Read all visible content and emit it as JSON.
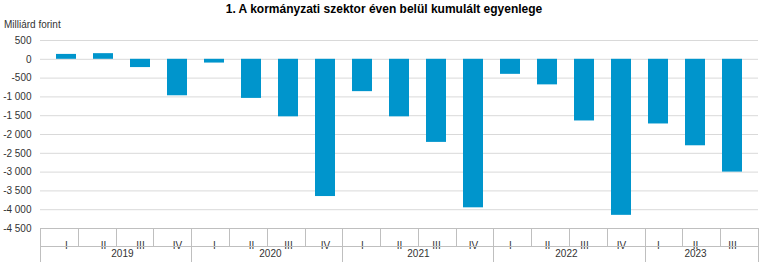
{
  "chart_data": {
    "type": "bar",
    "title": "1. A kormányzati szektor éven belül kumulált egyenlege",
    "y_label": "Milliárd forint",
    "categories": [
      "I",
      "II",
      "III",
      "IV",
      "I",
      "II",
      "III",
      "IV",
      "I",
      "II",
      "III",
      "IV",
      "I",
      "II",
      "III",
      "IV",
      "I",
      "II",
      "III"
    ],
    "x_groups": [
      "2019",
      "2019",
      "2019",
      "2019",
      "2020",
      "2020",
      "2020",
      "2020",
      "2021",
      "2021",
      "2021",
      "2021",
      "2022",
      "2022",
      "2022",
      "2022",
      "2023",
      "2023",
      "2023"
    ],
    "values": [
      130,
      150,
      -220,
      -970,
      -100,
      -1040,
      -1530,
      -3650,
      -860,
      -1530,
      -2210,
      -3950,
      -400,
      -680,
      -1640,
      -4150,
      -1720,
      -2300,
      -3000
    ],
    "color": "#0095cc",
    "ylim": [
      -4500,
      500
    ],
    "yticks": [
      500,
      0,
      -500,
      {
        "value": -1000,
        "label": "-1 000"
      },
      {
        "value": -1500,
        "label": "-1 500"
      },
      {
        "value": -2000,
        "label": "-2 000"
      },
      {
        "value": -2500,
        "label": "-2 500"
      },
      {
        "value": -3000,
        "label": "-3 000"
      },
      {
        "value": -3500,
        "label": "-3 500"
      },
      {
        "value": -4000,
        "label": "-4 000"
      },
      {
        "value": -4500,
        "label": "-4 500"
      }
    ],
    "grid": true
  }
}
